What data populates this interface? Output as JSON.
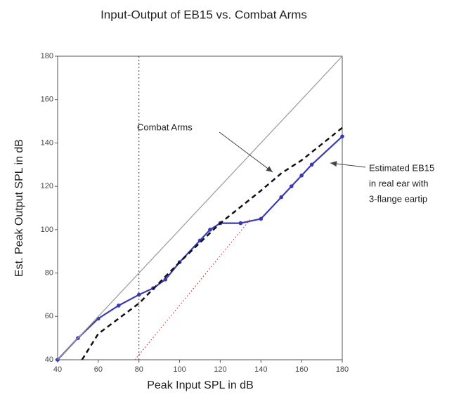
{
  "chart_data": {
    "type": "line",
    "title": "Input-Output of EB15 vs. Combat Arms",
    "x_label": "Peak Input SPL in dB",
    "y_label": "Est. Peak Output SPL in dB",
    "xlim": [
      40,
      180
    ],
    "ylim": [
      40,
      180
    ],
    "xticks": [
      40,
      60,
      80,
      100,
      120,
      140,
      160,
      180
    ],
    "yticks": [
      40,
      60,
      80,
      100,
      120,
      140,
      160,
      180
    ],
    "reference_lines_x": [
      80
    ],
    "series": [
      {
        "name": "Estimated EB15 in real ear with 3-flange eartip",
        "color": "#3b3bb0",
        "style": "solid",
        "markers": true,
        "x": [
          40,
          50,
          60,
          70,
          80,
          87,
          93,
          100,
          110,
          115,
          120,
          130,
          140,
          150,
          155,
          160,
          165,
          180
        ],
        "values": [
          40,
          50,
          59,
          65,
          70,
          73,
          77,
          85,
          95,
          100,
          103,
          103,
          105,
          115,
          120,
          125,
          130,
          143
        ]
      },
      {
        "name": "Combat Arms",
        "color": "#111111",
        "style": "dashed",
        "markers": false,
        "x": [
          52,
          60,
          80,
          100,
          120,
          140,
          150,
          160,
          180
        ],
        "values": [
          40,
          52,
          66,
          85,
          103,
          118,
          126,
          132,
          147
        ]
      },
      {
        "color": "#999999",
        "style": "solid",
        "markers": false,
        "x": [
          40,
          180
        ],
        "values": [
          40,
          180
        ]
      },
      {
        "color": "#e03030",
        "style": "dotted",
        "markers": false,
        "x": [
          78,
          135
        ],
        "values": [
          40,
          105
        ]
      }
    ],
    "annotations": [
      {
        "lines": [
          "Combat Arms"
        ],
        "target": "chart_data.series.1"
      },
      {
        "lines": [
          "Estimated EB15",
          "in real ear with",
          "3-flange eartip"
        ],
        "target": "chart_data.series.0"
      }
    ]
  }
}
